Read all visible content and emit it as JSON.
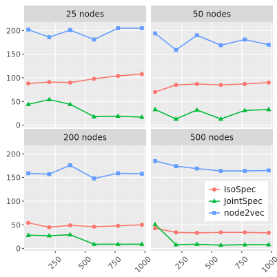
{
  "chart_data": {
    "type": "line",
    "facets": [
      {
        "title": "25 nodes",
        "series": [
          {
            "name": "IsoSpec",
            "x": [
              25,
              200,
              375,
              575,
              775,
              975
            ],
            "values": [
              88,
              91,
              90,
              98,
              104,
              108
            ]
          },
          {
            "name": "JointSpec",
            "x": [
              25,
              200,
              375,
              575,
              775,
              975
            ],
            "values": [
              44,
              54,
              44,
              18,
              19,
              17
            ]
          },
          {
            "name": "node2vec",
            "x": [
              25,
              200,
              375,
              575,
              775,
              975
            ],
            "values": [
              202,
              186,
              201,
              181,
              205,
              205
            ]
          }
        ]
      },
      {
        "title": "50 nodes",
        "series": [
          {
            "name": "IsoSpec",
            "x": [
              25,
              200,
              375,
              575,
              775,
              975
            ],
            "values": [
              70,
              85,
              87,
              85,
              87,
              90
            ]
          },
          {
            "name": "JointSpec",
            "x": [
              25,
              200,
              375,
              575,
              775,
              975
            ],
            "values": [
              33,
              13,
              32,
              13,
              31,
              33
            ]
          },
          {
            "name": "node2vec",
            "x": [
              25,
              200,
              375,
              575,
              775,
              975
            ],
            "values": [
              194,
              159,
              190,
              169,
              181,
              170
            ]
          }
        ]
      },
      {
        "title": "200 nodes",
        "series": [
          {
            "name": "IsoSpec",
            "x": [
              25,
              200,
              375,
              575,
              775,
              975
            ],
            "values": [
              54,
              45,
              49,
              46,
              48,
              50
            ]
          },
          {
            "name": "JointSpec",
            "x": [
              25,
              200,
              375,
              575,
              775,
              975
            ],
            "values": [
              28,
              27,
              29,
              9,
              9,
              9
            ]
          },
          {
            "name": "node2vec",
            "x": [
              25,
              200,
              375,
              575,
              775,
              975
            ],
            "values": [
              159,
              157,
              176,
              148,
              159,
              158
            ]
          }
        ]
      },
      {
        "title": "500 nodes",
        "series": [
          {
            "name": "IsoSpec",
            "x": [
              25,
              200,
              375,
              575,
              775,
              975
            ],
            "values": [
              43,
              34,
              33,
              34,
              34,
              33
            ]
          },
          {
            "name": "JointSpec",
            "x": [
              25,
              200,
              375,
              575,
              775,
              975
            ],
            "values": [
              51,
              8,
              9,
              7,
              8,
              8
            ]
          },
          {
            "name": "node2vec",
            "x": [
              25,
              200,
              375,
              575,
              775,
              975
            ],
            "values": [
              185,
              174,
              169,
              164,
              164,
              165
            ]
          }
        ]
      }
    ],
    "x_ticks": [
      250,
      500,
      750,
      1000
    ],
    "x_tick_labels": [
      "250",
      "500",
      "750",
      "1000"
    ],
    "y_ticks": [
      0,
      50,
      100,
      150,
      200
    ],
    "y_tick_labels": [
      "0",
      "50",
      "100",
      "150",
      "200"
    ],
    "xlim": [
      -10,
      1010
    ],
    "ylim": [
      -5,
      218
    ],
    "grid": true,
    "legend": {
      "position": "inside-bottom-right",
      "entries": [
        "IsoSpec",
        "JointSpec",
        "node2vec"
      ]
    },
    "series_style": [
      {
        "name": "IsoSpec",
        "color": "#f8766d",
        "marker": "circle"
      },
      {
        "name": "JointSpec",
        "color": "#00ba38",
        "marker": "triangle"
      },
      {
        "name": "node2vec",
        "color": "#619cff",
        "marker": "square"
      }
    ],
    "title": "",
    "xlabel": "",
    "ylabel": ""
  }
}
